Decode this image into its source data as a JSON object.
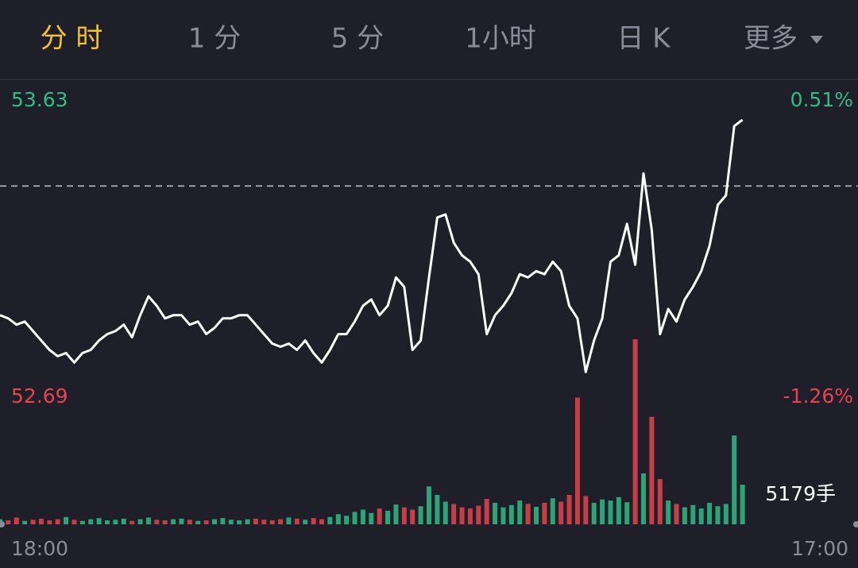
{
  "tabs": [
    "分 时",
    "1 分",
    "5 分",
    "1小时",
    "日 K",
    "更多"
  ],
  "active_tab": 0,
  "chart_data": {
    "type": "line",
    "xlim": [
      0,
      104
    ],
    "x_labels": [
      "18:00",
      "17:00"
    ],
    "ylim": [
      52.69,
      53.63
    ],
    "yticks": [
      52.69,
      53.63
    ],
    "y2lim": [
      -1.26,
      0.51
    ],
    "y2ticks": [
      {
        "value": -1.26,
        "label": "-1.26%"
      },
      {
        "value": 0.51,
        "label": "0.51%"
      }
    ],
    "reference": 53.36,
    "color": "#ffffff",
    "up_color": "#2ebd85",
    "down_color": "#e8434f",
    "values": [
      52.95,
      52.94,
      52.92,
      52.93,
      52.9,
      52.87,
      52.84,
      52.82,
      52.83,
      52.8,
      52.83,
      52.84,
      52.87,
      52.89,
      52.9,
      52.92,
      52.88,
      52.95,
      53.01,
      52.98,
      52.94,
      52.95,
      52.95,
      52.92,
      52.93,
      52.89,
      52.91,
      52.94,
      52.94,
      52.95,
      52.95,
      52.92,
      52.89,
      52.86,
      52.85,
      52.86,
      52.84,
      52.87,
      52.83,
      52.8,
      52.84,
      52.89,
      52.89,
      52.93,
      52.98,
      53.0,
      52.95,
      52.98,
      53.07,
      53.04,
      52.84,
      52.87,
      53.07,
      53.26,
      53.27,
      53.18,
      53.14,
      53.12,
      53.08,
      52.89,
      52.95,
      52.98,
      53.02,
      53.08,
      53.07,
      53.09,
      53.08,
      53.12,
      53.09,
      52.98,
      52.94,
      52.77,
      52.87,
      52.94,
      53.12,
      53.14,
      53.24,
      53.11,
      53.4,
      53.22,
      52.89,
      52.97,
      52.93,
      53.0,
      53.04,
      53.09,
      53.17,
      53.3,
      53.33,
      53.55,
      53.57
    ],
    "volume": {
      "ylim": [
        0,
        33000
      ],
      "values": [
        900,
        700,
        1200,
        600,
        800,
        1000,
        700,
        900,
        1300,
        800,
        600,
        900,
        1100,
        700,
        800,
        1000,
        600,
        900,
        1200,
        800,
        700,
        900,
        1000,
        800,
        600,
        700,
        900,
        1100,
        800,
        700,
        900,
        1000,
        800,
        700,
        900,
        1200,
        1000,
        800,
        1100,
        900,
        1300,
        1800,
        1500,
        2200,
        2600,
        2000,
        2800,
        2400,
        3500,
        3000,
        2600,
        3200,
        6700,
        5200,
        4000,
        3600,
        3000,
        2800,
        3300,
        4500,
        3800,
        3000,
        3400,
        4200,
        3600,
        3100,
        3800,
        4600,
        4000,
        5200,
        22400,
        5000,
        3800,
        4400,
        4200,
        4800,
        3900,
        32700,
        9000,
        19000,
        8000,
        4200,
        3600,
        3000,
        3400,
        2800,
        3800,
        3200,
        3600,
        15700,
        7000
      ],
      "label": "5179手"
    }
  }
}
